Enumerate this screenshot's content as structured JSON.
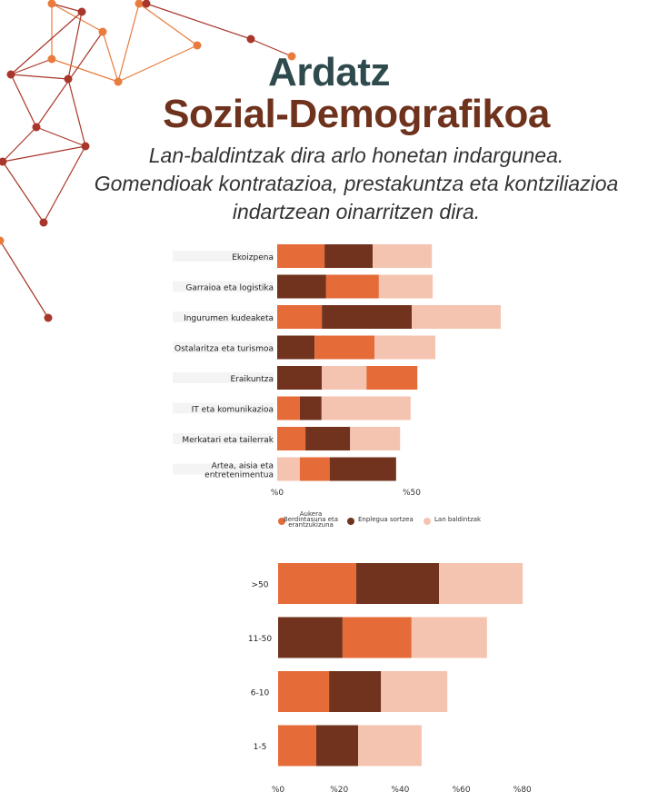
{
  "header": {
    "title_line1": "Ardatz",
    "title_line2": "Sozial-Demografikoa",
    "subtitle_lines": [
      "Lan-baldintzak dira arlo honetan indargunea.",
      "Gomendioak kontratazioa, prestakuntza eta kontziliazioa",
      "indartzean oinarritzen dira."
    ]
  },
  "colors": {
    "title_dark": "#2f4a4c",
    "title_brown": "#6f321d",
    "series_aukera": "#e56b38",
    "series_enplegua": "#71331e",
    "series_lan": "#f5c4b0",
    "network_orange": "#e97b3d",
    "network_red": "#a9362a"
  },
  "legend": [
    {
      "label": "Aukera Berdintasuna eta erantzukizuna",
      "lines": [
        "Aukera",
        "Berdintasuna eta",
        "erantzukizuna"
      ],
      "color": "#e56b38"
    },
    {
      "label": "Enplegua sortzea",
      "lines": [
        "Enplegua sortzea"
      ],
      "color": "#71331e"
    },
    {
      "label": "Lan baldintzak",
      "lines": [
        "Lan baldintzak"
      ],
      "color": "#f5c4b0"
    }
  ],
  "chart_data": [
    {
      "type": "bar",
      "orientation": "horizontal-stacked",
      "title": "",
      "xlabel": "",
      "ylabel": "",
      "xlim": [
        0,
        85
      ],
      "x_ticks": [
        "%0",
        "%50"
      ],
      "x_tick_values": [
        0,
        50
      ],
      "categories": [
        "Ekoizpena",
        "Garraioa eta logistika",
        "Ingurumen kudeaketa",
        "Ostalaritza eta turismoa",
        "Eraikuntza",
        "IT eta komunikazioa",
        "Merkatari eta tailerrak",
        "Artea, aisia eta entretenimentua"
      ],
      "category_lines": [
        [
          "Ekoizpena"
        ],
        [
          "Garraioa eta logistika"
        ],
        [
          "Ingurumen kudeaketa"
        ],
        [
          "Ostalaritza eta turismoa"
        ],
        [
          "Eraikuntza"
        ],
        [
          "IT eta komunikazioa"
        ],
        [
          "Merkatari eta tailerrak"
        ],
        [
          "Artea, aisia eta",
          "entretenimentua"
        ]
      ],
      "series": [
        {
          "name": "Aukera Berdintasuna eta erantzukizuna",
          "values": [
            17.6,
            19.6,
            16.6,
            22.3,
            18.9,
            8.4,
            10.5,
            11.1
          ]
        },
        {
          "name": "Enplegua sortzea",
          "values": [
            17.9,
            18.2,
            33.4,
            13.9,
            16.6,
            8.1,
            16.6,
            24.7
          ]
        },
        {
          "name": "Lan baldintzak",
          "values": [
            22.0,
            20.0,
            33.1,
            22.6,
            16.6,
            33.1,
            18.6,
            8.4
          ]
        }
      ],
      "segment_order": [
        [
          "Aukera Berdintasuna eta erantzukizuna",
          "Enplegua sortzea",
          "Lan baldintzak"
        ],
        [
          "Enplegua sortzea",
          "Aukera Berdintasuna eta erantzukizuna",
          "Lan baldintzak"
        ],
        [
          "Aukera Berdintasuna eta erantzukizuna",
          "Enplegua sortzea",
          "Lan baldintzak"
        ],
        [
          "Enplegua sortzea",
          "Aukera Berdintasuna eta erantzukizuna",
          "Lan baldintzak"
        ],
        [
          "Enplegua sortzea",
          "Lan baldintzak",
          "Aukera Berdintasuna eta erantzukizuna"
        ],
        [
          "Aukera Berdintasuna eta erantzukizuna",
          "Enplegua sortzea",
          "Lan baldintzak"
        ],
        [
          "Aukera Berdintasuna eta erantzukizuna",
          "Enplegua sortzea",
          "Lan baldintzak"
        ],
        [
          "Lan baldintzak",
          "Aukera Berdintasuna eta erantzukizuna",
          "Enplegua sortzea"
        ]
      ],
      "legend_position": "bottom",
      "grid": false
    },
    {
      "type": "bar",
      "orientation": "horizontal-stacked",
      "title": "",
      "xlabel": "",
      "ylabel": "",
      "xlim": [
        0,
        80
      ],
      "x_ticks": [
        "%0",
        "%20",
        "%40",
        "%60",
        "%80"
      ],
      "x_tick_values": [
        0,
        20,
        40,
        60,
        80
      ],
      "categories": [
        ">50",
        "11-50",
        "6-10",
        "1-5"
      ],
      "series": [
        {
          "name": "Aukera Berdintasuna eta erantzukizuna",
          "values": [
            25.6,
            22.6,
            16.7,
            12.5
          ]
        },
        {
          "name": "Enplegua sortzea",
          "values": [
            27.1,
            21.1,
            17.0,
            13.7
          ]
        },
        {
          "name": "Lan baldintzak",
          "values": [
            27.4,
            24.7,
            21.7,
            20.8
          ]
        }
      ],
      "segment_order": [
        [
          "Aukera Berdintasuna eta erantzukizuna",
          "Enplegua sortzea",
          "Lan baldintzak"
        ],
        [
          "Enplegua sortzea",
          "Aukera Berdintasuna eta erantzukizuna",
          "Lan baldintzak"
        ],
        [
          "Aukera Berdintasuna eta erantzukizuna",
          "Enplegua sortzea",
          "Lan baldintzak"
        ],
        [
          "Aukera Berdintasuna eta erantzukizuna",
          "Enplegua sortzea",
          "Lan baldintzak"
        ]
      ],
      "legend_position": "none",
      "grid": false
    }
  ]
}
